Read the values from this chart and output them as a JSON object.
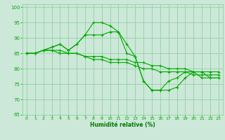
{
  "background_color": "#cce8d8",
  "grid_color": "#88cc99",
  "line_color": "#00aa00",
  "xlabel": "Humidité relative (%)",
  "xlabel_color": "#007700",
  "xlim": [
    -0.5,
    23.5
  ],
  "ylim": [
    65,
    101
  ],
  "yticks": [
    65,
    70,
    75,
    80,
    85,
    90,
    95,
    100
  ],
  "xticks": [
    0,
    1,
    2,
    3,
    4,
    5,
    6,
    7,
    8,
    9,
    10,
    11,
    12,
    13,
    14,
    15,
    16,
    17,
    18,
    19,
    20,
    21,
    22,
    23
  ],
  "series": [
    {
      "x": [
        0,
        1,
        2,
        3,
        4,
        5,
        6,
        7,
        8,
        9,
        10,
        11,
        12,
        13,
        14,
        15,
        16,
        17,
        18,
        19,
        20,
        21,
        22,
        23
      ],
      "y": [
        85,
        85,
        86,
        86,
        86,
        85,
        85,
        84,
        84,
        84,
        83,
        83,
        83,
        82,
        82,
        81,
        81,
        80,
        80,
        80,
        79,
        79,
        79,
        79
      ]
    },
    {
      "x": [
        0,
        1,
        2,
        3,
        4,
        5,
        6,
        7,
        8,
        9,
        10,
        11,
        12,
        13,
        14,
        15,
        16,
        17,
        18,
        19,
        20,
        21,
        22,
        23
      ],
      "y": [
        85,
        85,
        86,
        86,
        85,
        85,
        85,
        84,
        83,
        83,
        82,
        82,
        82,
        81,
        80,
        80,
        79,
        79,
        79,
        79,
        78,
        78,
        78,
        78
      ]
    },
    {
      "x": [
        0,
        1,
        2,
        3,
        4,
        5,
        6,
        7,
        8,
        9,
        10,
        11,
        12,
        13,
        14,
        15,
        16,
        17,
        18,
        19,
        20,
        21,
        22,
        23
      ],
      "y": [
        85,
        85,
        86,
        87,
        88,
        86,
        88,
        91,
        95,
        95,
        94,
        92,
        88,
        84,
        76,
        73,
        73,
        73,
        74,
        77,
        79,
        77,
        77,
        77
      ]
    },
    {
      "x": [
        0,
        1,
        2,
        3,
        4,
        5,
        6,
        7,
        8,
        9,
        10,
        11,
        12,
        13,
        14,
        15,
        16,
        17,
        18,
        19,
        20,
        21,
        22,
        23
      ],
      "y": [
        85,
        85,
        86,
        87,
        88,
        86,
        88,
        91,
        91,
        91,
        92,
        92,
        85,
        84,
        76,
        73,
        73,
        76,
        77,
        79,
        79,
        79,
        77,
        77
      ]
    }
  ]
}
